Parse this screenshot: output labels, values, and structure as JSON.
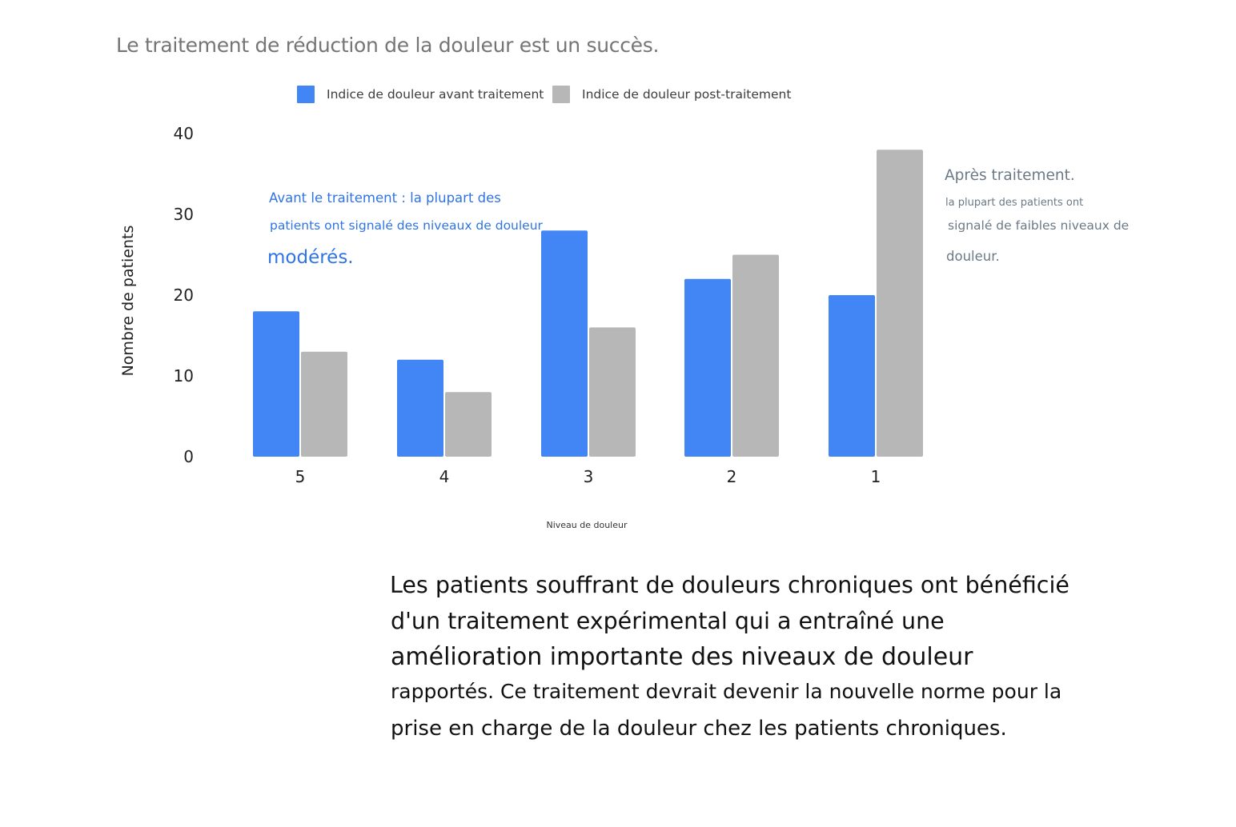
{
  "title": "Le traitement de réduction de la douleur est un succès.",
  "colors": {
    "before": "#4285f4",
    "after": "#b7b7b7"
  },
  "annotations": {
    "before": {
      "line1": "Avant le traitement : la plupart des",
      "line2": "patients ont signalé des niveaux de douleur",
      "line3": "modérés."
    },
    "after": {
      "line1": "Après traitement.",
      "line2": "la plupart des patients ont",
      "line3": "signalé de faibles niveaux de",
      "line4": "douleur."
    }
  },
  "description": {
    "line1": "Les patients souffrant de douleurs chroniques ont bénéficié",
    "line2": "d'un traitement expérimental qui a entraîné une",
    "line3": "amélioration importante des niveaux de douleur",
    "line4": "rapportés. Ce traitement devrait devenir la nouvelle norme pour la",
    "line5": "prise en charge de la douleur chez les patients chroniques."
  },
  "chart_data": {
    "type": "bar",
    "categories": [
      "5",
      "4",
      "3",
      "2",
      "1"
    ],
    "series": [
      {
        "name": "Indice de douleur avant traitement",
        "values": [
          18,
          12,
          28,
          22,
          20
        ]
      },
      {
        "name": "Indice de douleur post-traitement",
        "values": [
          13,
          8,
          16,
          25,
          38
        ]
      }
    ],
    "xlabel": "Niveau de douleur",
    "ylabel": "Nombre de patients",
    "ylim": [
      0,
      40
    ],
    "yticks": [
      "0",
      "10",
      "20",
      "30",
      "40"
    ],
    "grid": false,
    "legend_position": "top"
  }
}
